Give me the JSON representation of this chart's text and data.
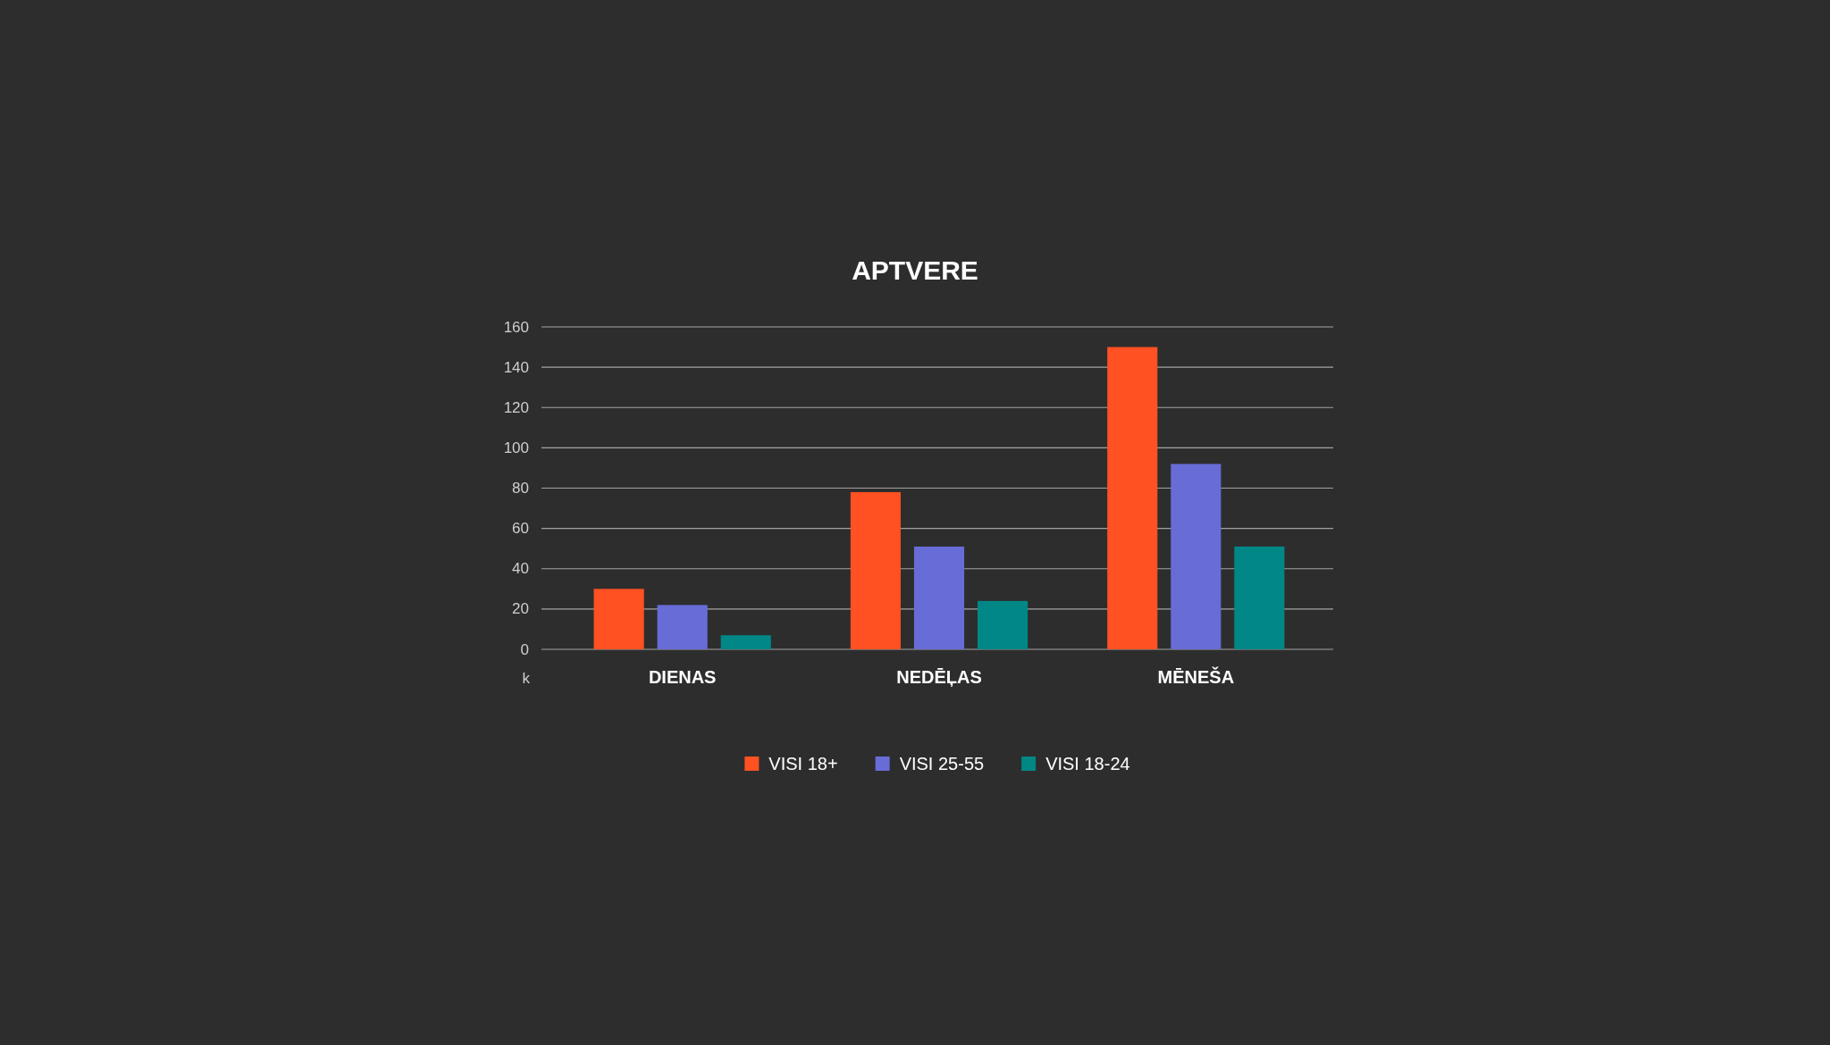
{
  "chart_data": {
    "type": "bar",
    "title": "APTVERE",
    "ylabel": "k",
    "categories": [
      "DIENAS",
      "NEDĒĻAS",
      "MĒNEŠA"
    ],
    "series": [
      {
        "name": "VISI 18+",
        "color": "#ff5122",
        "values": [
          30,
          78,
          150
        ]
      },
      {
        "name": "VISI 25-55",
        "color": "#686cd6",
        "values": [
          22,
          51,
          92
        ]
      },
      {
        "name": "VISI 18-24",
        "color": "#028787",
        "values": [
          7,
          24,
          51
        ]
      }
    ],
    "ylim": [
      0,
      160
    ],
    "yticks": [
      0,
      20,
      40,
      60,
      80,
      100,
      120,
      140,
      160
    ],
    "grid": "y",
    "legend": "bottom"
  }
}
